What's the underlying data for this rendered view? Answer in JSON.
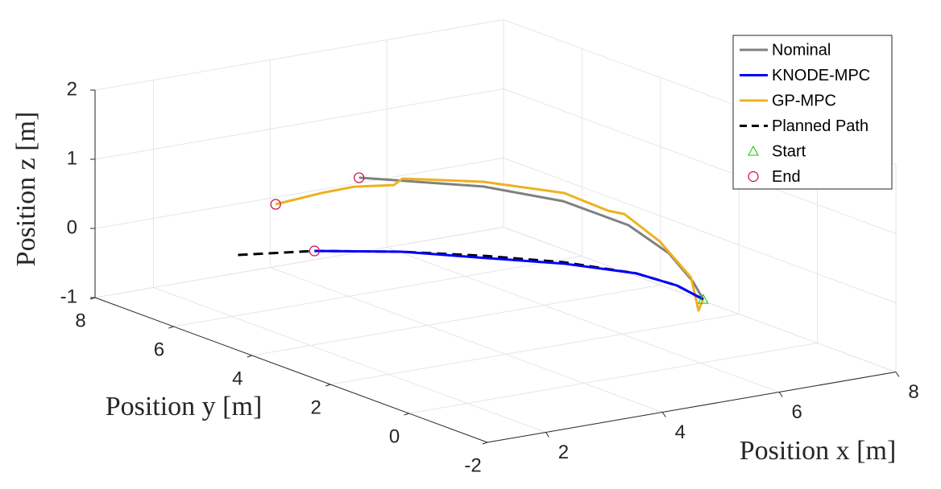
{
  "chart_data": {
    "type": "line3d",
    "xlabel": "Position x [m]",
    "ylabel": "Position y [m]",
    "zlabel": "Position z [m]",
    "xlim": [
      1,
      8
    ],
    "xticks": [
      2,
      4,
      6,
      8
    ],
    "ylim": [
      -2,
      8
    ],
    "yticks": [
      -2,
      0,
      2,
      4,
      6,
      8
    ],
    "zlim": [
      -1,
      2
    ],
    "zticks": [
      -1,
      0,
      1,
      2
    ],
    "grid": true,
    "legend": "northeast",
    "series": [
      {
        "name": "Nominal",
        "color": "#808080",
        "dashed": false,
        "x": [
          3.5,
          4.78,
          5.47,
          6.02,
          6.15,
          6.04,
          5.86
        ],
        "y": [
          4.99,
          3.73,
          2.72,
          1.87,
          1.03,
          0.26,
          -0.27
        ],
        "z": [
          1,
          0.95,
          0.85,
          0.6,
          0.35,
          0.12,
          0
        ]
      },
      {
        "name": "KNODE-MPC",
        "color": "#0000ff",
        "dashed": false,
        "x": [
          2.85,
          3.85,
          4.67,
          5.4,
          5.9,
          5.99,
          5.86
        ],
        "y": [
          5.16,
          4.41,
          3.56,
          2.61,
          1.49,
          0.59,
          -0.27
        ],
        "z": [
          0,
          0,
          -0.03,
          -0.02,
          0,
          0,
          0
        ]
      },
      {
        "name": "GP-MPC",
        "color": "#edb120",
        "dashed": false,
        "x": [
          2.34,
          2.91,
          3.27,
          3.74,
          3.87,
          4.82,
          5.63,
          6.02,
          6.15,
          6.31,
          6.19,
          5.78,
          5.86
        ],
        "y": [
          5.39,
          5.06,
          4.77,
          4.46,
          4.43,
          3.79,
          2.93,
          2.39,
          2.17,
          1.51,
          0.53,
          -0.27,
          -0.27
        ],
        "z": [
          0.7,
          0.85,
          0.95,
          0.97,
          1.05,
          1,
          0.9,
          0.7,
          0.68,
          0.4,
          0.1,
          -0.15,
          0
        ]
      },
      {
        "name": "Planned Path",
        "color": "#000000",
        "dashed": true,
        "x": [
          1.83,
          2.85,
          3.85,
          4.67,
          5.4,
          5.9,
          5.99,
          5.86
        ],
        "y": [
          5.59,
          5.16,
          4.41,
          3.56,
          2.61,
          1.49,
          0.59,
          -0.27
        ],
        "z": [
          0,
          0,
          0,
          0,
          0,
          0,
          0,
          0
        ]
      },
      {
        "name": "Start",
        "color": "#00cc00",
        "marker": "triangle",
        "x": [
          5.86
        ],
        "y": [
          -0.27
        ],
        "z": [
          0
        ]
      },
      {
        "name": "End",
        "color": "#d4004a",
        "marker": "circle",
        "x": [
          3.5,
          2.34,
          2.85
        ],
        "y": [
          4.99,
          5.39,
          5.16
        ],
        "z": [
          1,
          0.7,
          0
        ]
      }
    ]
  }
}
